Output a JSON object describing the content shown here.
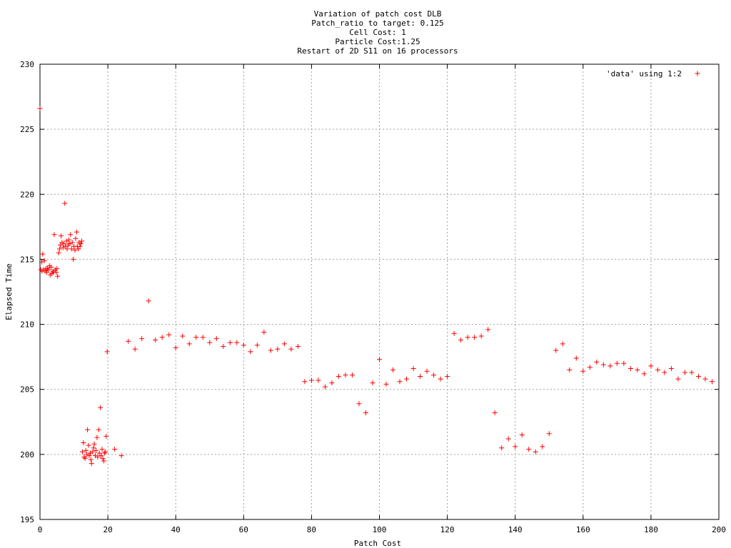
{
  "chart_data": {
    "type": "scatter",
    "title_lines": [
      "Variation of patch cost DLB",
      "Patch_ratio to target: 0.125",
      "Cell Cost: 1",
      "Particle Cost:1.25",
      "Restart of 2D S11 on 16 processors"
    ],
    "xlabel": "Patch Cost",
    "ylabel": "Elapsed Time",
    "xlim": [
      0,
      200
    ],
    "ylim": [
      195,
      230
    ],
    "xticks": [
      0,
      20,
      40,
      60,
      80,
      100,
      120,
      140,
      160,
      180,
      200
    ],
    "yticks": [
      195,
      200,
      205,
      210,
      215,
      220,
      225,
      230
    ],
    "grid": true,
    "legend_position": "top-right",
    "series": [
      {
        "name": "'data' using 1:2",
        "color": "#ff0000",
        "marker": "plus",
        "points": [
          [
            0,
            226.6
          ],
          [
            0.2,
            214.2
          ],
          [
            0.5,
            214.8
          ],
          [
            0.6,
            214.1
          ],
          [
            0.8,
            215.4
          ],
          [
            1.0,
            214.2
          ],
          [
            1.3,
            214.9
          ],
          [
            1.5,
            214.1
          ],
          [
            1.8,
            214.3
          ],
          [
            2.0,
            214.0
          ],
          [
            2.2,
            214.3
          ],
          [
            2.5,
            214.2
          ],
          [
            2.8,
            214.5
          ],
          [
            3.0,
            213.8
          ],
          [
            3.3,
            214.4
          ],
          [
            3.5,
            213.9
          ],
          [
            3.8,
            214.1
          ],
          [
            4.0,
            214.0
          ],
          [
            4.2,
            216.9
          ],
          [
            4.5,
            214.2
          ],
          [
            4.8,
            214.0
          ],
          [
            5.0,
            214.3
          ],
          [
            5.2,
            213.7
          ],
          [
            5.5,
            215.5
          ],
          [
            5.8,
            215.8
          ],
          [
            6.0,
            216.1
          ],
          [
            6.2,
            216.8
          ],
          [
            6.5,
            216.3
          ],
          [
            6.8,
            215.9
          ],
          [
            7.0,
            216.2
          ],
          [
            7.3,
            219.3
          ],
          [
            7.5,
            216.0
          ],
          [
            7.8,
            216.4
          ],
          [
            8.0,
            215.8
          ],
          [
            8.3,
            216.1
          ],
          [
            8.5,
            216.5
          ],
          [
            8.8,
            216.2
          ],
          [
            9.0,
            216.9
          ],
          [
            9.3,
            215.8
          ],
          [
            9.5,
            216.3
          ],
          [
            9.8,
            215.0
          ],
          [
            10.0,
            216.0
          ],
          [
            10.3,
            215.7
          ],
          [
            10.5,
            216.6
          ],
          [
            10.8,
            217.1
          ],
          [
            11.0,
            216.0
          ],
          [
            11.3,
            215.8
          ],
          [
            11.5,
            216.3
          ],
          [
            11.8,
            216.0
          ],
          [
            12.0,
            216.2
          ],
          [
            12.3,
            216.4
          ],
          [
            12.5,
            200.2
          ],
          [
            12.8,
            200.9
          ],
          [
            13.0,
            199.8
          ],
          [
            13.3,
            199.7
          ],
          [
            13.5,
            200.3
          ],
          [
            13.8,
            200.0
          ],
          [
            14.0,
            201.9
          ],
          [
            14.3,
            200.7
          ],
          [
            14.5,
            199.9
          ],
          [
            14.8,
            200.1
          ],
          [
            15.0,
            199.6
          ],
          [
            15.2,
            199.3
          ],
          [
            15.5,
            200.2
          ],
          [
            15.8,
            200.5
          ],
          [
            16.0,
            200.8
          ],
          [
            16.3,
            199.9
          ],
          [
            16.5,
            200.3
          ],
          [
            16.8,
            201.3
          ],
          [
            17.0,
            199.8
          ],
          [
            17.3,
            201.9
          ],
          [
            17.5,
            200.1
          ],
          [
            17.8,
            203.6
          ],
          [
            18.0,
            199.9
          ],
          [
            18.3,
            200.4
          ],
          [
            18.5,
            199.7
          ],
          [
            18.8,
            199.5
          ],
          [
            19.0,
            200.1
          ],
          [
            19.3,
            200.2
          ],
          [
            19.5,
            201.4
          ],
          [
            19.8,
            207.9
          ],
          [
            22,
            200.4
          ],
          [
            24,
            199.9
          ],
          [
            26,
            208.7
          ],
          [
            28,
            208.1
          ],
          [
            30,
            208.9
          ],
          [
            32,
            211.8
          ],
          [
            34,
            208.8
          ],
          [
            36,
            209.0
          ],
          [
            38,
            209.2
          ],
          [
            40,
            208.2
          ],
          [
            42,
            209.1
          ],
          [
            44,
            208.5
          ],
          [
            46,
            209.0
          ],
          [
            48,
            209.0
          ],
          [
            50,
            208.6
          ],
          [
            52,
            208.9
          ],
          [
            54,
            208.3
          ],
          [
            56,
            208.6
          ],
          [
            58,
            208.6
          ],
          [
            60,
            208.4
          ],
          [
            62,
            207.9
          ],
          [
            64,
            208.4
          ],
          [
            66,
            209.4
          ],
          [
            68,
            208.0
          ],
          [
            70,
            208.1
          ],
          [
            72,
            208.5
          ],
          [
            74,
            208.1
          ],
          [
            76,
            208.3
          ],
          [
            78,
            205.6
          ],
          [
            80,
            205.7
          ],
          [
            82,
            205.7
          ],
          [
            84,
            205.2
          ],
          [
            86,
            205.5
          ],
          [
            88,
            206.0
          ],
          [
            90,
            206.1
          ],
          [
            92,
            206.1
          ],
          [
            94,
            203.9
          ],
          [
            96,
            203.2
          ],
          [
            98,
            205.5
          ],
          [
            100,
            207.3
          ],
          [
            102,
            205.4
          ],
          [
            104,
            206.5
          ],
          [
            106,
            205.6
          ],
          [
            108,
            205.8
          ],
          [
            110,
            206.6
          ],
          [
            112,
            206.0
          ],
          [
            114,
            206.4
          ],
          [
            116,
            206.1
          ],
          [
            118,
            205.8
          ],
          [
            120,
            206.0
          ],
          [
            122,
            209.3
          ],
          [
            124,
            208.8
          ],
          [
            126,
            209.0
          ],
          [
            128,
            209.0
          ],
          [
            130,
            209.1
          ],
          [
            132,
            209.6
          ],
          [
            134,
            203.2
          ],
          [
            136,
            200.5
          ],
          [
            138,
            201.2
          ],
          [
            140,
            200.6
          ],
          [
            142,
            201.5
          ],
          [
            144,
            200.4
          ],
          [
            146,
            200.2
          ],
          [
            148,
            200.6
          ],
          [
            150,
            201.6
          ],
          [
            152,
            208.0
          ],
          [
            154,
            208.5
          ],
          [
            156,
            206.5
          ],
          [
            158,
            207.4
          ],
          [
            160,
            206.4
          ],
          [
            162,
            206.7
          ],
          [
            164,
            207.1
          ],
          [
            166,
            206.9
          ],
          [
            168,
            206.8
          ],
          [
            170,
            207.0
          ],
          [
            172,
            207.0
          ],
          [
            174,
            206.6
          ],
          [
            176,
            206.5
          ],
          [
            178,
            206.2
          ],
          [
            180,
            206.8
          ],
          [
            182,
            206.5
          ],
          [
            184,
            206.3
          ],
          [
            186,
            206.6
          ],
          [
            188,
            205.8
          ],
          [
            190,
            206.3
          ],
          [
            192,
            206.3
          ],
          [
            194,
            206.0
          ],
          [
            196,
            205.8
          ],
          [
            198,
            205.6
          ]
        ]
      }
    ]
  }
}
